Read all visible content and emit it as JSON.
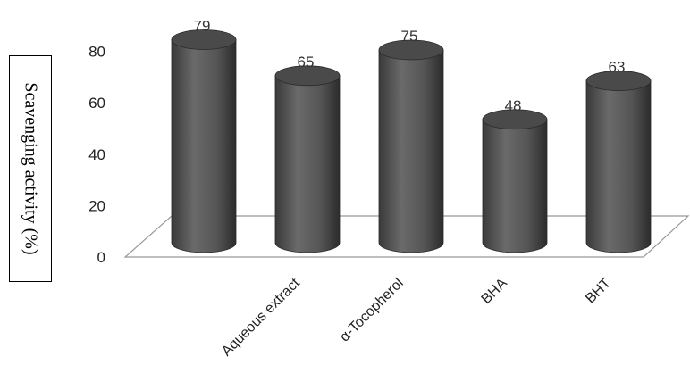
{
  "chart_data": {
    "type": "bar",
    "title": "",
    "xlabel": "",
    "ylabel": "Scavenging activity (%)",
    "ylim": [
      0,
      80
    ],
    "yticks": [
      0,
      20,
      40,
      60,
      80
    ],
    "grid": false,
    "legend": "none",
    "categories": [
      "",
      "Aqueous extract",
      "α-Tocopherol",
      "BHA",
      "BHT"
    ],
    "values": [
      79,
      65,
      75,
      48,
      63
    ],
    "data_labels": [
      "79",
      "65",
      "75",
      "48",
      "63"
    ],
    "colors": {
      "bar": "#555555",
      "bar_dark": "#2e2e2e",
      "bar_top": "#4a4a4a",
      "floor": "#999999"
    }
  }
}
